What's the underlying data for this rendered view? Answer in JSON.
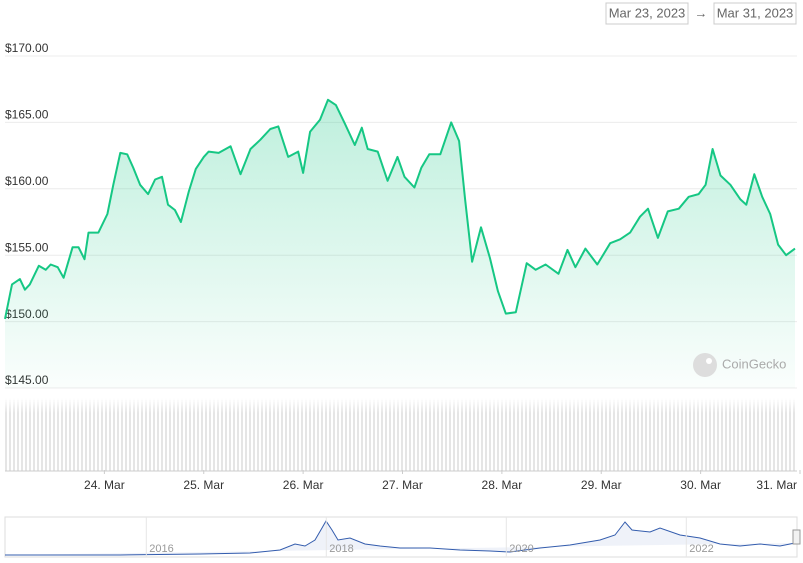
{
  "chart_data": {
    "type": "line",
    "range_start": "Mar 23, 2023",
    "range_arrow": "→",
    "range_end": "Mar 31, 2023",
    "credit": "CoinGecko",
    "color": "#16c784",
    "grid": true,
    "xlim": [
      23,
      31
    ],
    "xticks": [
      {
        "value": 24,
        "label": "24. Mar"
      },
      {
        "value": 25,
        "label": "25. Mar"
      },
      {
        "value": 26,
        "label": "26. Mar"
      },
      {
        "value": 27,
        "label": "27. Mar"
      },
      {
        "value": 28,
        "label": "28. Mar"
      },
      {
        "value": 29,
        "label": "29. Mar"
      },
      {
        "value": 30,
        "label": "30. Mar"
      },
      {
        "value": 31,
        "label": "31. Mar"
      }
    ],
    "ylim": [
      145,
      170
    ],
    "yticks": [
      {
        "value": 145,
        "label": "$145.00"
      },
      {
        "value": 150,
        "label": "$150.00"
      },
      {
        "value": 155,
        "label": "$155.00"
      },
      {
        "value": 160,
        "label": "$160.00"
      },
      {
        "value": 165,
        "label": "$165.00"
      },
      {
        "value": 170,
        "label": "$170.00"
      }
    ],
    "x": [
      23.0,
      23.07,
      23.15,
      23.2,
      23.25,
      23.34,
      23.41,
      23.46,
      23.53,
      23.59,
      23.68,
      23.74,
      23.8,
      23.84,
      23.94,
      24.03,
      24.09,
      24.16,
      24.23,
      24.29,
      24.36,
      24.44,
      24.51,
      24.58,
      24.64,
      24.71,
      24.77,
      24.85,
      24.92,
      25.0,
      25.05,
      25.15,
      25.27,
      25.37,
      25.47,
      25.57,
      25.67,
      25.75,
      25.85,
      25.95,
      26.0,
      26.07,
      26.17,
      26.25,
      26.33,
      26.42,
      26.52,
      26.59,
      26.65,
      26.75,
      26.85,
      26.95,
      27.02,
      27.12,
      27.19,
      27.27,
      27.38,
      27.49,
      27.57,
      27.63,
      27.7,
      27.79,
      27.88,
      27.96,
      28.04,
      28.14,
      28.25,
      28.34,
      28.44,
      28.57,
      28.66,
      28.74,
      28.84,
      28.96,
      29.09,
      29.19,
      29.29,
      29.39,
      29.47,
      29.57,
      29.67,
      29.78,
      29.88,
      29.98,
      30.05,
      30.12,
      30.2,
      30.3,
      30.4,
      30.46,
      30.54,
      30.62,
      30.7,
      30.78,
      30.86,
      30.95
    ],
    "values": [
      150.2,
      152.8,
      153.2,
      152.4,
      152.8,
      154.2,
      153.9,
      154.3,
      154.1,
      153.3,
      155.6,
      155.6,
      154.7,
      156.7,
      156.7,
      158.1,
      160.3,
      162.7,
      162.6,
      161.6,
      160.3,
      159.6,
      160.7,
      160.9,
      158.8,
      158.4,
      157.5,
      159.8,
      161.5,
      162.4,
      162.8,
      162.7,
      163.2,
      161.1,
      163.0,
      163.7,
      164.5,
      164.7,
      162.4,
      162.8,
      161.2,
      164.3,
      165.2,
      166.7,
      166.3,
      164.9,
      163.3,
      164.6,
      163.0,
      162.8,
      160.6,
      162.4,
      160.9,
      160.1,
      161.6,
      162.6,
      162.6,
      165.0,
      163.6,
      159.2,
      154.5,
      157.1,
      154.8,
      152.3,
      150.6,
      150.7,
      154.4,
      153.9,
      154.3,
      153.6,
      155.4,
      154.1,
      155.5,
      154.3,
      155.9,
      156.2,
      156.7,
      157.9,
      158.5,
      156.3,
      158.3,
      158.5,
      159.4,
      159.6,
      160.3,
      163.0,
      161.0,
      160.3,
      159.2,
      158.8,
      161.1,
      159.4,
      158.1,
      155.8,
      155.0,
      155.5
    ],
    "navigator": {
      "xlim": [
        2014.43,
        2023.23
      ],
      "xticks": [
        2016,
        2018,
        2020,
        2022
      ]
    }
  }
}
